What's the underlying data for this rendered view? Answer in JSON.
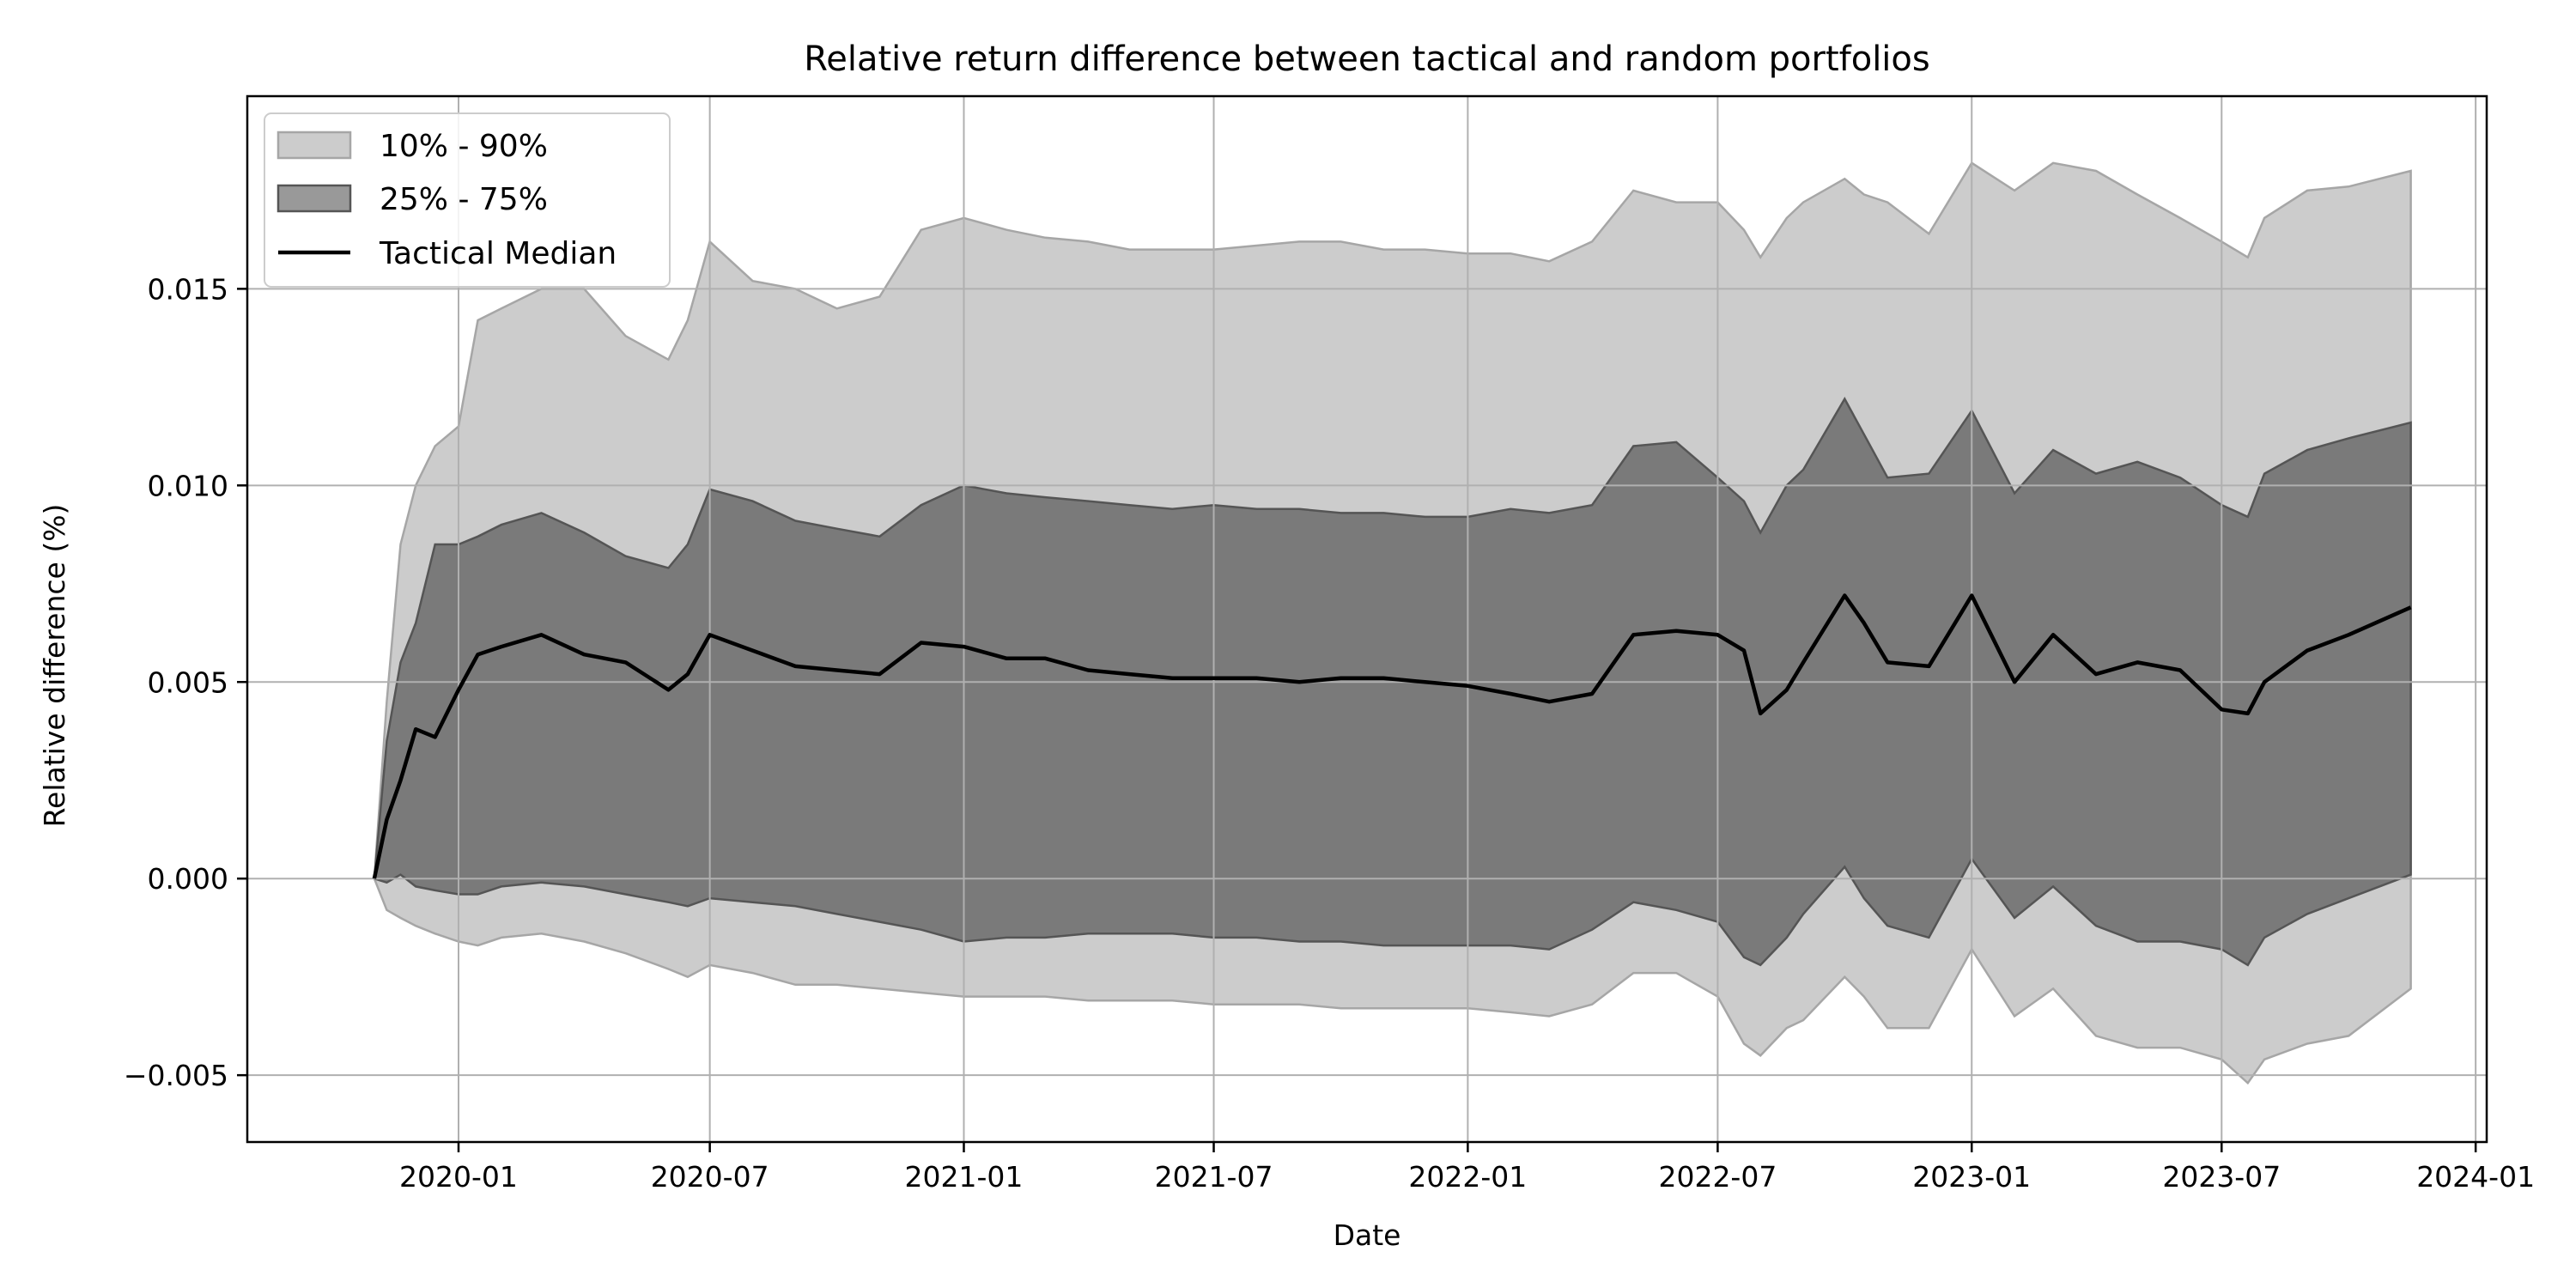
{
  "chart_data": {
    "type": "area",
    "title": "Relative return difference between tactical and random portfolios",
    "xlabel": "Date",
    "ylabel": "Relative difference (%)",
    "xlim": [
      "2019-08-01",
      "2024-01-09"
    ],
    "ylim": [
      -0.0067,
      0.0199
    ],
    "x_ticks": [
      "2020-01-01",
      "2020-07-01",
      "2021-01-01",
      "2021-07-01",
      "2022-01-01",
      "2022-07-01",
      "2023-01-01",
      "2023-07-01",
      "2024-01-01"
    ],
    "x_tick_labels": [
      "2020-01",
      "2020-07",
      "2021-01",
      "2021-07",
      "2022-01",
      "2022-07",
      "2023-01",
      "2023-07",
      "2024-01"
    ],
    "y_ticks": [
      -0.005,
      0.0,
      0.005,
      0.01,
      0.015
    ],
    "y_tick_labels": [
      "−0.005",
      "0.000",
      "0.005",
      "0.010",
      "0.015"
    ],
    "grid": true,
    "legend_position": "top-left",
    "legend": [
      "10% - 90%",
      "25% - 75%",
      "Tactical Median"
    ],
    "colors": {
      "band_10_90": "#cccccc",
      "band_10_90_edge": "#a6a6a6",
      "band_25_75": "#7a7a7a",
      "band_25_75_edge": "#555555",
      "median": "#000000",
      "grid": "#b0b0b0"
    },
    "series": [
      {
        "name": "Tactical Median",
        "x": [
          "2019-11-01",
          "2019-11-10",
          "2019-11-20",
          "2019-12-01",
          "2019-12-15",
          "2020-01-01",
          "2020-01-15",
          "2020-02-01",
          "2020-03-01",
          "2020-04-01",
          "2020-05-01",
          "2020-06-01",
          "2020-06-15",
          "2020-07-01",
          "2020-08-01",
          "2020-09-01",
          "2020-10-01",
          "2020-11-01",
          "2020-12-01",
          "2021-01-01",
          "2021-02-01",
          "2021-03-01",
          "2021-04-01",
          "2021-05-01",
          "2021-06-01",
          "2021-07-01",
          "2021-08-01",
          "2021-09-01",
          "2021-10-01",
          "2021-11-01",
          "2021-12-01",
          "2022-01-01",
          "2022-02-01",
          "2022-03-01",
          "2022-04-01",
          "2022-05-01",
          "2022-06-01",
          "2022-07-01",
          "2022-07-20",
          "2022-08-01",
          "2022-08-20",
          "2022-09-01",
          "2022-10-01",
          "2022-10-15",
          "2022-11-01",
          "2022-12-01",
          "2023-01-01",
          "2023-02-01",
          "2023-03-01",
          "2023-04-01",
          "2023-05-01",
          "2023-06-01",
          "2023-07-01",
          "2023-07-20",
          "2023-08-01",
          "2023-09-01",
          "2023-10-01",
          "2023-11-15"
        ],
        "values": [
          0.0,
          0.0015,
          0.0025,
          0.0038,
          0.0036,
          0.0048,
          0.0057,
          0.0059,
          0.0062,
          0.0057,
          0.0055,
          0.0048,
          0.0052,
          0.0062,
          0.0058,
          0.0054,
          0.0053,
          0.0052,
          0.006,
          0.0059,
          0.0056,
          0.0056,
          0.0053,
          0.0052,
          0.0051,
          0.0051,
          0.0051,
          0.005,
          0.0051,
          0.0051,
          0.005,
          0.0049,
          0.0047,
          0.0045,
          0.0047,
          0.0062,
          0.0063,
          0.0062,
          0.0058,
          0.0042,
          0.0048,
          0.0055,
          0.0072,
          0.0065,
          0.0055,
          0.0054,
          0.0072,
          0.005,
          0.0062,
          0.0052,
          0.0055,
          0.0053,
          0.0043,
          0.0042,
          0.005,
          0.0058,
          0.0062,
          0.0069
        ]
      },
      {
        "name": "25% - 75%",
        "x": [
          "2019-11-01",
          "2019-11-10",
          "2019-11-20",
          "2019-12-01",
          "2019-12-15",
          "2020-01-01",
          "2020-01-15",
          "2020-02-01",
          "2020-03-01",
          "2020-04-01",
          "2020-05-01",
          "2020-06-01",
          "2020-06-15",
          "2020-07-01",
          "2020-08-01",
          "2020-09-01",
          "2020-10-01",
          "2020-11-01",
          "2020-12-01",
          "2021-01-01",
          "2021-02-01",
          "2021-03-01",
          "2021-04-01",
          "2021-05-01",
          "2021-06-01",
          "2021-07-01",
          "2021-08-01",
          "2021-09-01",
          "2021-10-01",
          "2021-11-01",
          "2021-12-01",
          "2022-01-01",
          "2022-02-01",
          "2022-03-01",
          "2022-04-01",
          "2022-05-01",
          "2022-06-01",
          "2022-07-01",
          "2022-07-20",
          "2022-08-01",
          "2022-08-20",
          "2022-09-01",
          "2022-10-01",
          "2022-10-15",
          "2022-11-01",
          "2022-12-01",
          "2023-01-01",
          "2023-02-01",
          "2023-03-01",
          "2023-04-01",
          "2023-05-01",
          "2023-06-01",
          "2023-07-01",
          "2023-07-20",
          "2023-08-01",
          "2023-09-01",
          "2023-10-01",
          "2023-11-15"
        ],
        "lower": [
          0.0,
          -0.0001,
          0.0001,
          -0.0002,
          -0.0003,
          -0.0004,
          -0.0004,
          -0.0002,
          -0.0001,
          -0.0002,
          -0.0004,
          -0.0006,
          -0.0007,
          -0.0005,
          -0.0006,
          -0.0007,
          -0.0009,
          -0.0011,
          -0.0013,
          -0.0016,
          -0.0015,
          -0.0015,
          -0.0014,
          -0.0014,
          -0.0014,
          -0.0015,
          -0.0015,
          -0.0016,
          -0.0016,
          -0.0017,
          -0.0017,
          -0.0017,
          -0.0017,
          -0.0018,
          -0.0013,
          -0.0006,
          -0.0008,
          -0.0011,
          -0.002,
          -0.0022,
          -0.0015,
          -0.0009,
          0.0003,
          -0.0005,
          -0.0012,
          -0.0015,
          0.0005,
          -0.001,
          -0.0002,
          -0.0012,
          -0.0016,
          -0.0016,
          -0.0018,
          -0.0022,
          -0.0015,
          -0.0009,
          -0.0005,
          0.0001
        ],
        "upper": [
          0.0,
          0.0035,
          0.0055,
          0.0065,
          0.0085,
          0.0085,
          0.0087,
          0.009,
          0.0093,
          0.0088,
          0.0082,
          0.0079,
          0.0085,
          0.0099,
          0.0096,
          0.0091,
          0.0089,
          0.0087,
          0.0095,
          0.01,
          0.0098,
          0.0097,
          0.0096,
          0.0095,
          0.0094,
          0.0095,
          0.0094,
          0.0094,
          0.0093,
          0.0093,
          0.0092,
          0.0092,
          0.0094,
          0.0093,
          0.0095,
          0.011,
          0.0111,
          0.0102,
          0.0096,
          0.0088,
          0.01,
          0.0104,
          0.0122,
          0.0113,
          0.0102,
          0.0103,
          0.0119,
          0.0098,
          0.0109,
          0.0103,
          0.0106,
          0.0102,
          0.0095,
          0.0092,
          0.0103,
          0.0109,
          0.0112,
          0.0116
        ]
      },
      {
        "name": "10% - 90%",
        "x": [
          "2019-11-01",
          "2019-11-10",
          "2019-11-20",
          "2019-12-01",
          "2019-12-15",
          "2020-01-01",
          "2020-01-15",
          "2020-02-01",
          "2020-03-01",
          "2020-04-01",
          "2020-05-01",
          "2020-06-01",
          "2020-06-15",
          "2020-07-01",
          "2020-08-01",
          "2020-09-01",
          "2020-10-01",
          "2020-11-01",
          "2020-12-01",
          "2021-01-01",
          "2021-02-01",
          "2021-03-01",
          "2021-04-01",
          "2021-05-01",
          "2021-06-01",
          "2021-07-01",
          "2021-08-01",
          "2021-09-01",
          "2021-10-01",
          "2021-11-01",
          "2021-12-01",
          "2022-01-01",
          "2022-02-01",
          "2022-03-01",
          "2022-04-01",
          "2022-05-01",
          "2022-06-01",
          "2022-07-01",
          "2022-07-20",
          "2022-08-01",
          "2022-08-20",
          "2022-09-01",
          "2022-10-01",
          "2022-10-15",
          "2022-11-01",
          "2022-12-01",
          "2023-01-01",
          "2023-02-01",
          "2023-03-01",
          "2023-04-01",
          "2023-05-01",
          "2023-06-01",
          "2023-07-01",
          "2023-07-20",
          "2023-08-01",
          "2023-09-01",
          "2023-10-01",
          "2023-11-15"
        ],
        "lower": [
          0.0,
          -0.0008,
          -0.001,
          -0.0012,
          -0.0014,
          -0.0016,
          -0.0017,
          -0.0015,
          -0.0014,
          -0.0016,
          -0.0019,
          -0.0023,
          -0.0025,
          -0.0022,
          -0.0024,
          -0.0027,
          -0.0027,
          -0.0028,
          -0.0029,
          -0.003,
          -0.003,
          -0.003,
          -0.0031,
          -0.0031,
          -0.0031,
          -0.0032,
          -0.0032,
          -0.0032,
          -0.0033,
          -0.0033,
          -0.0033,
          -0.0033,
          -0.0034,
          -0.0035,
          -0.0032,
          -0.0024,
          -0.0024,
          -0.003,
          -0.0042,
          -0.0045,
          -0.0038,
          -0.0036,
          -0.0025,
          -0.003,
          -0.0038,
          -0.0038,
          -0.0018,
          -0.0035,
          -0.0028,
          -0.004,
          -0.0043,
          -0.0043,
          -0.0046,
          -0.0052,
          -0.0046,
          -0.0042,
          -0.004,
          -0.0028
        ],
        "upper": [
          0.0,
          0.0045,
          0.0085,
          0.01,
          0.011,
          0.0115,
          0.0142,
          0.0145,
          0.015,
          0.015,
          0.0138,
          0.0132,
          0.0142,
          0.0162,
          0.0152,
          0.015,
          0.0145,
          0.0148,
          0.0165,
          0.0168,
          0.0165,
          0.0163,
          0.0162,
          0.016,
          0.016,
          0.016,
          0.0161,
          0.0162,
          0.0162,
          0.016,
          0.016,
          0.0159,
          0.0159,
          0.0157,
          0.0162,
          0.0175,
          0.0172,
          0.0172,
          0.0165,
          0.0158,
          0.0168,
          0.0172,
          0.0178,
          0.0174,
          0.0172,
          0.0164,
          0.0182,
          0.0175,
          0.0182,
          0.018,
          0.0174,
          0.0168,
          0.0162,
          0.0158,
          0.0168,
          0.0175,
          0.0176,
          0.018
        ]
      }
    ]
  }
}
